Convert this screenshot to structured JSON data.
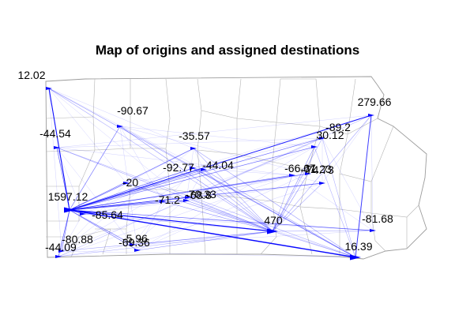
{
  "title": "Map of origins and assigned destinations",
  "colors": {
    "flow": "#0000ff",
    "boundary": "#a6a6a6",
    "label": "#000000"
  },
  "nodes": [
    {
      "id": "n1",
      "label": "12.02"
    },
    {
      "id": "n2",
      "label": "279.66"
    },
    {
      "id": "n3",
      "label": "-90.67"
    },
    {
      "id": "n4",
      "label": "-44.54"
    },
    {
      "id": "n5",
      "label": "-35.57"
    },
    {
      "id": "n6",
      "label": "-89.2"
    },
    {
      "id": "n7",
      "label": "30.12"
    },
    {
      "id": "n8",
      "label": "-92.77"
    },
    {
      "id": "n9",
      "label": "-44.04"
    },
    {
      "id": "n10",
      "label": "-66.67"
    },
    {
      "id": "n11",
      "label": "-74.73"
    },
    {
      "id": "n12",
      "label": "-71.23"
    },
    {
      "id": "n13",
      "label": "-20"
    },
    {
      "id": "n14",
      "label": "1597.12"
    },
    {
      "id": "n15",
      "label": "-71.2"
    },
    {
      "id": "n16",
      "label": "-70.33"
    },
    {
      "id": "n17",
      "label": "-68.8"
    },
    {
      "id": "n18",
      "label": "-85.64"
    },
    {
      "id": "n19",
      "label": "470"
    },
    {
      "id": "n20",
      "label": "-81.68"
    },
    {
      "id": "n21",
      "label": "-80.88"
    },
    {
      "id": "n22",
      "label": "-5.96"
    },
    {
      "id": "n23",
      "label": "-69.36"
    },
    {
      "id": "n24",
      "label": "-44.09"
    },
    {
      "id": "n25",
      "label": "16.39"
    }
  ]
}
